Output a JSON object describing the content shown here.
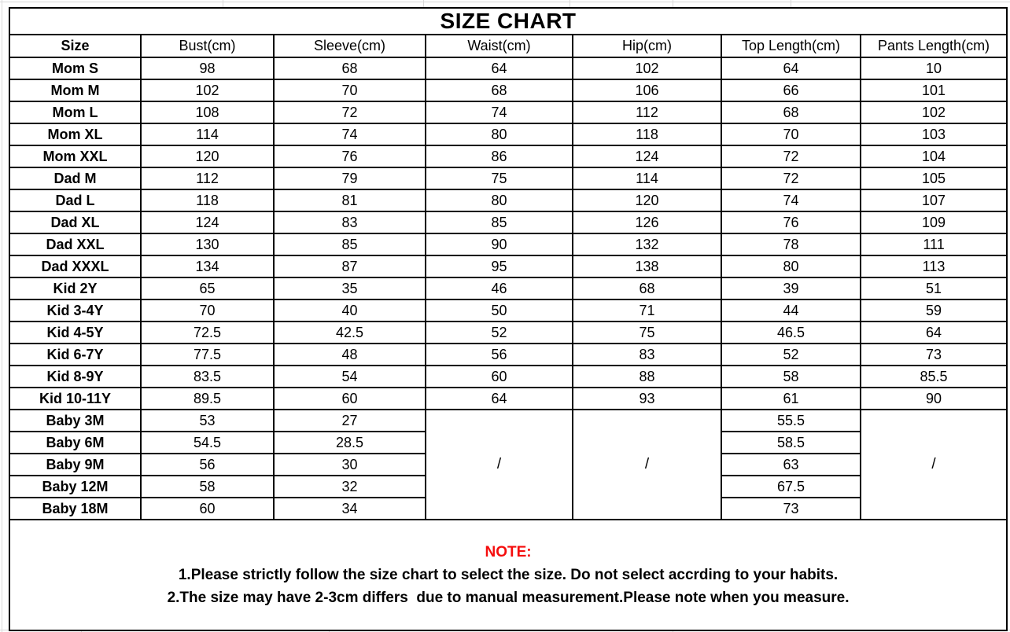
{
  "title": "SIZE CHART",
  "table": {
    "columns": [
      "Size",
      "Bust(cm)",
      "Sleeve(cm)",
      "Waist(cm)",
      "Hip(cm)",
      "Top Length(cm)",
      "Pants Length(cm)"
    ],
    "rows": [
      [
        "Mom S",
        "98",
        "68",
        "64",
        "102",
        "64",
        "10"
      ],
      [
        "Mom M",
        "102",
        "70",
        "68",
        "106",
        "66",
        "101"
      ],
      [
        "Mom L",
        "108",
        "72",
        "74",
        "112",
        "68",
        "102"
      ],
      [
        "Mom XL",
        "114",
        "74",
        "80",
        "118",
        "70",
        "103"
      ],
      [
        "Mom XXL",
        "120",
        "76",
        "86",
        "124",
        "72",
        "104"
      ],
      [
        "Dad M",
        "112",
        "79",
        "75",
        "114",
        "72",
        "105"
      ],
      [
        "Dad L",
        "118",
        "81",
        "80",
        "120",
        "74",
        "107"
      ],
      [
        "Dad XL",
        "124",
        "83",
        "85",
        "126",
        "76",
        "109"
      ],
      [
        "Dad XXL",
        "130",
        "85",
        "90",
        "132",
        "78",
        "111"
      ],
      [
        "Dad XXXL",
        "134",
        "87",
        "95",
        "138",
        "80",
        "113"
      ],
      [
        "Kid 2Y",
        "65",
        "35",
        "46",
        "68",
        "39",
        "51"
      ],
      [
        "Kid 3-4Y",
        "70",
        "40",
        "50",
        "71",
        "44",
        "59"
      ],
      [
        "Kid 4-5Y",
        "72.5",
        "42.5",
        "52",
        "75",
        "46.5",
        "64"
      ],
      [
        "Kid 6-7Y",
        "77.5",
        "48",
        "56",
        "83",
        "52",
        "73"
      ],
      [
        "Kid 8-9Y",
        "83.5",
        "54",
        "60",
        "88",
        "58",
        "85.5"
      ],
      [
        "Kid 10-11Y",
        "89.5",
        "60",
        "64",
        "93",
        "61",
        "90"
      ]
    ],
    "baby_rows": [
      {
        "size": "Baby 3M",
        "bust": "53",
        "sleeve": "27",
        "top_length": "55.5"
      },
      {
        "size": "Baby 6M",
        "bust": "54.5",
        "sleeve": "28.5",
        "top_length": "58.5"
      },
      {
        "size": "Baby 9M",
        "bust": "56",
        "sleeve": "30",
        "top_length": "63"
      },
      {
        "size": "Baby 12M",
        "bust": "58",
        "sleeve": "32",
        "top_length": "67.5"
      },
      {
        "size": "Baby 18M",
        "bust": "60",
        "sleeve": "34",
        "top_length": "73"
      }
    ],
    "baby_merged": {
      "waist": "/",
      "hip": "/",
      "pants_length": "/"
    }
  },
  "note": {
    "heading": "NOTE:",
    "heading_color": "#f50d0d",
    "lines": [
      "1.Please strictly follow the size chart to select the size. Do not select accrding to your habits.",
      "2.The size may have 2-3cm differs  due to manual measurement.Please note when you measure."
    ]
  }
}
